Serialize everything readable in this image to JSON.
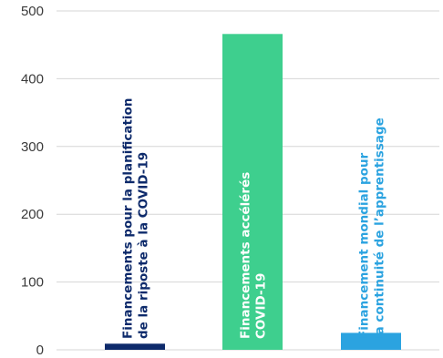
{
  "chart_data": {
    "type": "bar",
    "orientation": "vertical",
    "ylim": [
      0,
      500
    ],
    "yticks": [
      0,
      100,
      200,
      300,
      400,
      500
    ],
    "grid": true,
    "bars": [
      {
        "label_lines": [
          "Financements pour la planification",
          "de la riposte à la COVID-19"
        ],
        "value": 9,
        "color": "#0d2a6b",
        "label_color": "#0d2a6b"
      },
      {
        "label_lines": [
          "Financements accélérés",
          "COVID-19"
        ],
        "value": 466,
        "color": "#3ecf8e",
        "label_color": "#ffffff"
      },
      {
        "label_lines": [
          "Financement mondial pour",
          "la continuité de l’apprentissage"
        ],
        "value": 25,
        "color": "#2ba3e0",
        "label_color": "#2ba3e0"
      }
    ]
  }
}
